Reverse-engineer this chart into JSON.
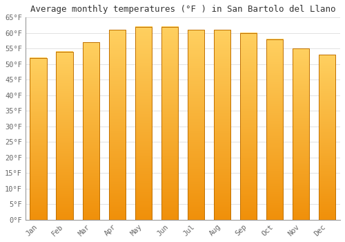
{
  "months": [
    "Jan",
    "Feb",
    "Mar",
    "Apr",
    "May",
    "Jun",
    "Jul",
    "Aug",
    "Sep",
    "Oct",
    "Nov",
    "Dec"
  ],
  "values": [
    52,
    54,
    57,
    61,
    62,
    62,
    61,
    61,
    60,
    58,
    55,
    53
  ],
  "bar_color_top": "#FFD060",
  "bar_color_bottom": "#F0900A",
  "bar_edge_color": "#C07000",
  "title": "Average monthly temperatures (°F ) in San Bartolo del Llano",
  "ylim": [
    0,
    65
  ],
  "yticks": [
    0,
    5,
    10,
    15,
    20,
    25,
    30,
    35,
    40,
    45,
    50,
    55,
    60,
    65
  ],
  "ylabel_suffix": "°F",
  "bg_color": "#FFFFFF",
  "plot_bg_color": "#FFFFFF",
  "grid_color": "#DDDDDD",
  "title_fontsize": 9,
  "tick_fontsize": 7.5,
  "font_family": "monospace",
  "tick_color": "#666666",
  "bar_width": 0.65
}
